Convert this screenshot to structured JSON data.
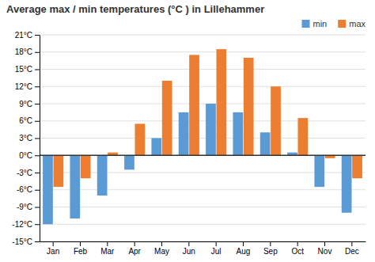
{
  "chart_data": {
    "type": "bar",
    "title": "Average max / min temperatures (°C ) in Lillehammer",
    "categories": [
      "Jan",
      "Feb",
      "Mar",
      "Apr",
      "May",
      "Jun",
      "Jul",
      "Aug",
      "Sep",
      "Oct",
      "Nov",
      "Dec"
    ],
    "series": [
      {
        "name": "min",
        "color": "#5b9bd5",
        "values": [
          -12,
          -11,
          -7,
          -2.5,
          3,
          7.5,
          9,
          7.5,
          4,
          0.5,
          -5.5,
          -10
        ]
      },
      {
        "name": "max",
        "color": "#ed7d31",
        "values": [
          -5.5,
          -4,
          0.5,
          5.5,
          13,
          17.5,
          18.5,
          17,
          12,
          6.5,
          -0.5,
          -4
        ]
      }
    ],
    "ylim": [
      -15,
      21
    ],
    "yticks": [
      {
        "value": -15,
        "label": "-15°C"
      },
      {
        "value": -12,
        "label": "-12°C"
      },
      {
        "value": -9,
        "label": "-9°C"
      },
      {
        "value": -6,
        "label": "-6°C"
      },
      {
        "value": -3,
        "label": "-3°C"
      },
      {
        "value": 0,
        "label": "0°C"
      },
      {
        "value": 3,
        "label": "3°C"
      },
      {
        "value": 6,
        "label": "6°C"
      },
      {
        "value": 9,
        "label": "9°C"
      },
      {
        "value": 12,
        "label": "12°C"
      },
      {
        "value": 15,
        "label": "15°C"
      },
      {
        "value": 18,
        "label": "18°C"
      },
      {
        "value": 21,
        "label": "21°C"
      }
    ],
    "grid": true,
    "legend": "top-right"
  }
}
